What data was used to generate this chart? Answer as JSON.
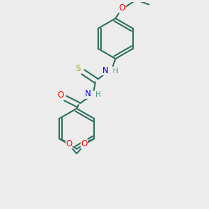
{
  "bg_color": "#ececec",
  "bond_color": "#2d6e5e",
  "bond_width": 1.5,
  "atom_colors": {
    "O": "#ff0000",
    "N": "#0000dd",
    "S": "#aaaa00",
    "H": "#4a9e8a"
  },
  "font_size": 8.5,
  "fig_size": [
    3.0,
    3.0
  ],
  "dpi": 100,
  "xlim": [
    -2.2,
    2.2
  ],
  "ylim": [
    -2.8,
    2.8
  ]
}
